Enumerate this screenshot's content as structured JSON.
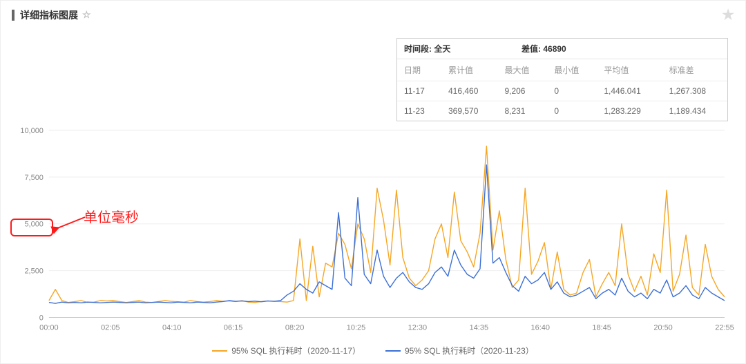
{
  "header": {
    "title": "详细指标图展"
  },
  "stats": {
    "time_label": "时间段:",
    "time_value": "全天",
    "diff_label": "差值:",
    "diff_value": "46890",
    "columns": [
      "日期",
      "累计值",
      "最大值",
      "最小值",
      "平均值",
      "标准差"
    ],
    "rows": [
      [
        "11-17",
        "416,460",
        "9,206",
        "0",
        "1,446.041",
        "1,267.308"
      ],
      [
        "11-23",
        "369,570",
        "8,231",
        "0",
        "1,283.229",
        "1,189.434"
      ]
    ]
  },
  "annotation": {
    "text": "单位毫秒",
    "arrow_color": "#ff1a1a"
  },
  "chart": {
    "type": "line",
    "background_color": "#ffffff",
    "grid_color": "#eeeeee",
    "axis_color": "#999999",
    "tick_fontsize": 11,
    "tick_color": "#888888",
    "ylim": [
      0,
      10000
    ],
    "yticks": [
      0,
      2500,
      5000,
      7500,
      10000
    ],
    "ytick_labels": [
      "0",
      "2,500",
      "5,000",
      "7,500",
      "10,000"
    ],
    "x_categories": [
      "00:00",
      "02:05",
      "04:10",
      "06:15",
      "08:20",
      "10:25",
      "12:30",
      "14:35",
      "16:40",
      "18:45",
      "20:50",
      "22:55"
    ],
    "series": [
      {
        "name": "95% SQL 执行耗时（2020-11-17）",
        "color": "#f5a623",
        "line_width": 1.4,
        "values": [
          900,
          1500,
          900,
          800,
          850,
          900,
          800,
          820,
          900,
          880,
          900,
          850,
          800,
          850,
          900,
          820,
          800,
          850,
          900,
          860,
          840,
          820,
          900,
          850,
          820,
          850,
          900,
          860,
          880,
          850,
          900,
          820,
          800,
          850,
          880,
          860,
          850,
          820,
          900,
          4200,
          900,
          3800,
          1100,
          2900,
          2700,
          4500,
          3900,
          2600,
          5000,
          4200,
          2400,
          6900,
          5200,
          2800,
          6800,
          3200,
          2100,
          1700,
          2000,
          2500,
          4200,
          5000,
          3200,
          6700,
          4100,
          3500,
          2700,
          4500,
          9150,
          3600,
          5700,
          3100,
          1600,
          2000,
          6900,
          2300,
          3000,
          4000,
          1500,
          3500,
          1500,
          1200,
          1300,
          2400,
          3100,
          1100,
          1800,
          2400,
          1700,
          5000,
          2300,
          1400,
          2200,
          1200,
          3400,
          2400,
          6800,
          1400,
          2300,
          4400,
          1600,
          1200,
          3900,
          2200,
          1500,
          1100
        ]
      },
      {
        "name": "95% SQL 执行耗时（2020-11-23）",
        "color": "#3b6fd6",
        "line_width": 1.4,
        "values": [
          800,
          750,
          820,
          780,
          800,
          780,
          820,
          800,
          780,
          800,
          820,
          800,
          780,
          800,
          820,
          780,
          800,
          820,
          800,
          780,
          820,
          800,
          780,
          820,
          800,
          780,
          820,
          850,
          900,
          860,
          880,
          850,
          870,
          840,
          880,
          860,
          900,
          1200,
          1400,
          1800,
          1500,
          1300,
          1900,
          1700,
          1500,
          5600,
          2100,
          1700,
          6400,
          2300,
          1800,
          3600,
          2200,
          1600,
          2100,
          2400,
          1900,
          1600,
          1500,
          1800,
          2400,
          2700,
          2200,
          3600,
          2800,
          2300,
          2100,
          2600,
          8150,
          2900,
          3200,
          2400,
          1700,
          1400,
          2200,
          1800,
          2000,
          2400,
          1500,
          1900,
          1300,
          1100,
          1200,
          1400,
          1600,
          1000,
          1300,
          1500,
          1200,
          2100,
          1400,
          1100,
          1300,
          1000,
          1500,
          1300,
          2000,
          1100,
          1300,
          1700,
          1200,
          1000,
          1600,
          1300,
          1100,
          900
        ]
      }
    ],
    "legend_position": "bottom"
  }
}
